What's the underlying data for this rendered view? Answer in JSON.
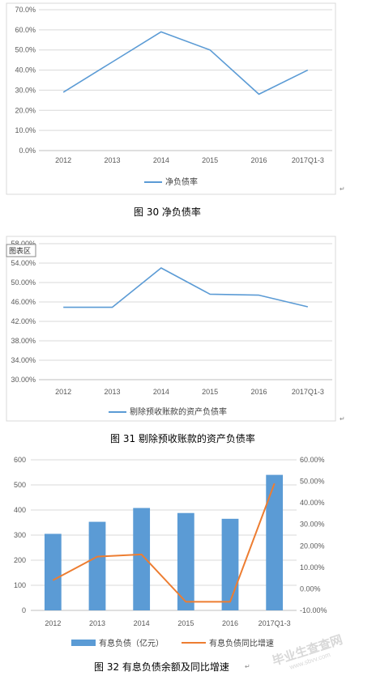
{
  "chart_data": [
    {
      "type": "line",
      "categories": [
        "2012",
        "2013",
        "2014",
        "2015",
        "2016",
        "2017Q1-3"
      ],
      "ytick_labels": [
        "0.0%",
        "10.0%",
        "20.0%",
        "30.0%",
        "40.0%",
        "50.0%",
        "60.0%",
        "70.0%"
      ],
      "ylim": [
        0,
        70
      ],
      "grid": true,
      "legend_position": "bottom",
      "series": [
        {
          "name": "净负债率",
          "values": [
            29,
            44,
            59,
            50,
            28,
            40
          ],
          "color": "#5b9bd5"
        }
      ],
      "caption": "图 30  净负债率"
    },
    {
      "type": "line",
      "categories": [
        "2012",
        "2013",
        "2014",
        "2015",
        "2016",
        "2017Q1-3"
      ],
      "ytick_labels": [
        "30.00%",
        "34.00%",
        "38.00%",
        "42.00%",
        "46.00%",
        "50.00%",
        "54.00%",
        "58.00%"
      ],
      "ylim": [
        30,
        58
      ],
      "grid": true,
      "legend_position": "bottom",
      "series": [
        {
          "name": "剔除预收账款的资产负债率",
          "values": [
            44.9,
            44.9,
            53.0,
            47.6,
            47.4,
            45.0
          ],
          "color": "#5b9bd5"
        }
      ],
      "chart_area_tag": "图表区",
      "caption": "图 31  剔除预收账款的资产负债率"
    },
    {
      "type": "bar",
      "categories": [
        "2012",
        "2013",
        "2014",
        "2015",
        "2016",
        "2017Q1-3"
      ],
      "ytick_labels": [
        "0",
        "100",
        "200",
        "300",
        "400",
        "500",
        "600"
      ],
      "y2tick_labels": [
        "-10.00%",
        "0.00%",
        "10.00%",
        "20.00%",
        "30.00%",
        "40.00%",
        "50.00%",
        "60.00%"
      ],
      "ylim": [
        0,
        600
      ],
      "y2lim": [
        -10,
        60
      ],
      "grid": true,
      "legend_position": "bottom",
      "series": [
        {
          "name": "有息负债（亿元）",
          "type": "bar",
          "axis": "left",
          "values": [
            305,
            353,
            408,
            388,
            365,
            540
          ],
          "color": "#5b9bd5"
        },
        {
          "name": "有息负债同比增速",
          "type": "line",
          "axis": "right",
          "values": [
            4,
            15,
            16,
            -6,
            -6,
            49
          ],
          "color": "#ed7d31"
        }
      ],
      "caption": "图 32  有息负债余额及同比增速"
    }
  ],
  "watermark": {
    "text": "毕业生查查网",
    "sub": "www.sbvv.com"
  }
}
